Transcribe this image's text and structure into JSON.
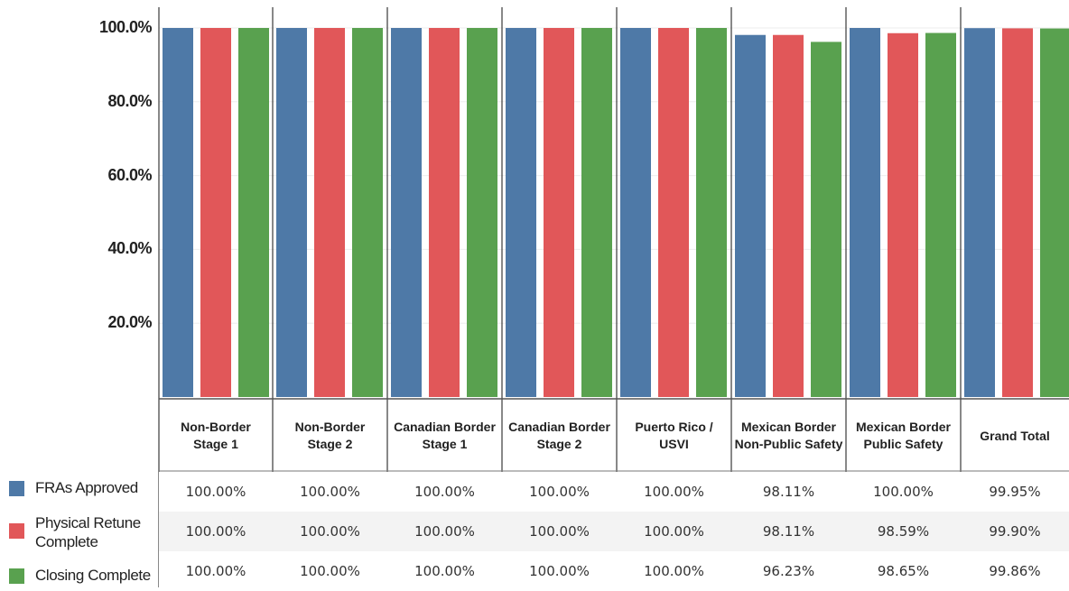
{
  "chart_data": {
    "type": "bar",
    "categories": [
      "Non-Border\nStage 1",
      "Non-Border\nStage 2",
      "Canadian Border\nStage 1",
      "Canadian Border\nStage 2",
      "Puerto Rico /\nUSVI",
      "Mexican Border\nNon-Public Safety",
      "Mexican Border\nPublic Safety",
      "Grand Total"
    ],
    "series": [
      {
        "name": "FRAs Approved",
        "color": "#4e79a7",
        "values": [
          100.0,
          100.0,
          100.0,
          100.0,
          100.0,
          98.11,
          100.0,
          99.95
        ],
        "labels": [
          "100.00%",
          "100.00%",
          "100.00%",
          "100.00%",
          "100.00%",
          "98.11%",
          "100.00%",
          "99.95%"
        ]
      },
      {
        "name": "Physical Retune\nComplete",
        "color": "#e15759",
        "values": [
          100.0,
          100.0,
          100.0,
          100.0,
          100.0,
          98.11,
          98.59,
          99.9
        ],
        "labels": [
          "100.00%",
          "100.00%",
          "100.00%",
          "100.00%",
          "100.00%",
          "98.11%",
          "98.59%",
          "99.90%"
        ]
      },
      {
        "name": "Closing Complete",
        "color": "#59a14f",
        "values": [
          100.0,
          100.0,
          100.0,
          100.0,
          100.0,
          96.23,
          98.65,
          99.86
        ],
        "labels": [
          "100.00%",
          "100.00%",
          "100.00%",
          "100.00%",
          "100.00%",
          "96.23%",
          "98.65%",
          "99.86%"
        ]
      }
    ],
    "y_ticks": [
      "100.0%",
      "80.0%",
      "60.0%",
      "40.0%",
      "20.0%"
    ],
    "ylim": [
      0,
      100
    ],
    "title": "",
    "xlabel": "",
    "ylabel": "",
    "legend_position": "bottom-left",
    "grid": true
  }
}
